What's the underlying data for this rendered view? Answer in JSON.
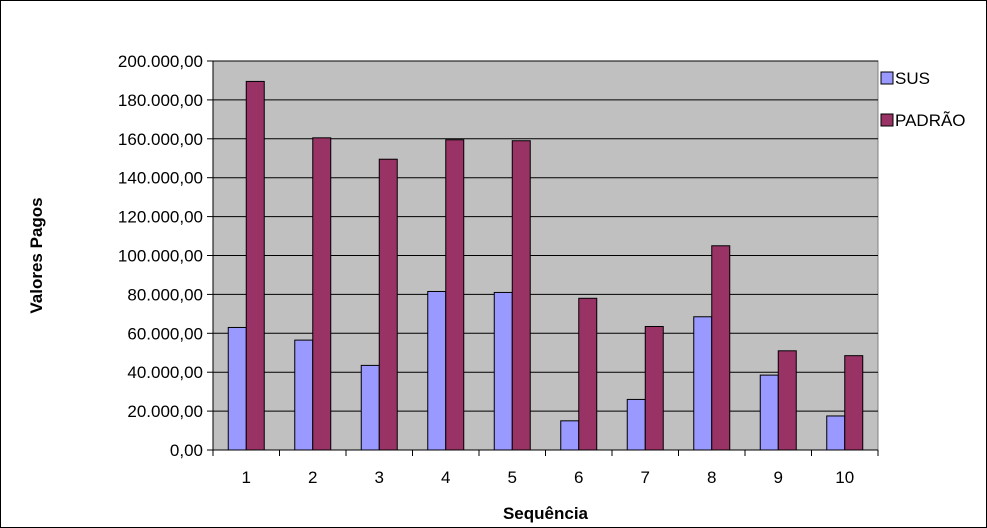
{
  "chart_data": {
    "type": "bar",
    "xlabel": "Sequência",
    "ylabel": "Valores Pagos",
    "categories": [
      "1",
      "2",
      "3",
      "4",
      "5",
      "6",
      "7",
      "8",
      "9",
      "10"
    ],
    "series": [
      {
        "name": "SUS",
        "color": "#9999ff",
        "values": [
          63000,
          56500,
          43500,
          81500,
          81000,
          15000,
          26000,
          68500,
          38500,
          17500
        ]
      },
      {
        "name": "PADRÃO",
        "color": "#993366",
        "values": [
          189500,
          160500,
          149500,
          159500,
          159000,
          78000,
          63500,
          105000,
          51000,
          48500
        ]
      }
    ],
    "ylim": [
      0,
      200000
    ],
    "yticks": [
      "0,00",
      "20.000,00",
      "40.000,00",
      "60.000,00",
      "80.000,00",
      "100.000,00",
      "120.000,00",
      "140.000,00",
      "160.000,00",
      "180.000,00",
      "200.000,00"
    ],
    "grid": true,
    "plot_background": "#c0c0c0",
    "legend": "right"
  }
}
